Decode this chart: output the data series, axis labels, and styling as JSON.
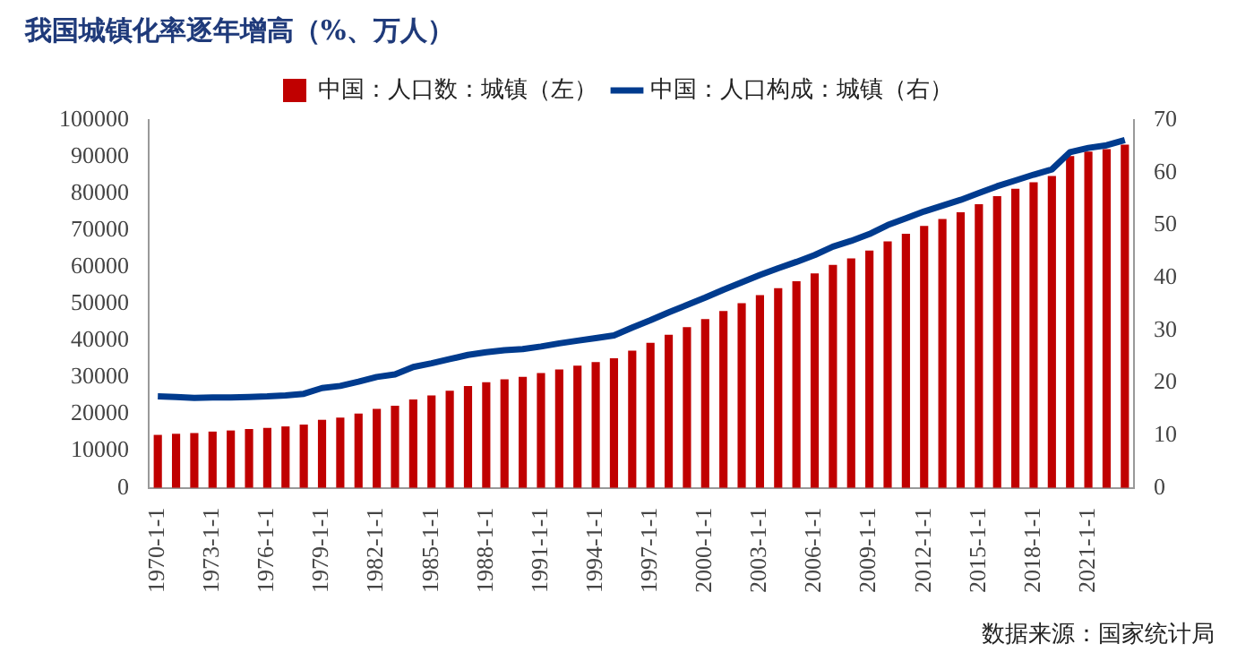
{
  "chart_data": {
    "type": "bar",
    "title": "我国城镇化率逐年增高（%、万人）",
    "categories": [
      "1970-1-1",
      null,
      null,
      "1973-1-1",
      null,
      null,
      "1976-1-1",
      null,
      null,
      "1979-1-1",
      null,
      null,
      "1982-1-1",
      null,
      null,
      "1985-1-1",
      null,
      null,
      "1988-1-1",
      null,
      null,
      "1991-1-1",
      null,
      null,
      "1994-1-1",
      null,
      null,
      "1997-1-1",
      null,
      null,
      "2000-1-1",
      null,
      null,
      "2003-1-1",
      null,
      null,
      "2006-1-1",
      null,
      null,
      "2009-1-1",
      null,
      null,
      "2012-1-1",
      null,
      null,
      "2015-1-1",
      null,
      null,
      "2018-1-1",
      null,
      null,
      "2021-1-1",
      null,
      null
    ],
    "series": [
      {
        "name": "中国：人口数：城镇（左）",
        "color": "#c00000",
        "values": [
          14400,
          14700,
          14900,
          15300,
          15600,
          16000,
          16300,
          16700,
          17200,
          18500,
          19100,
          20200,
          21500,
          22300,
          24000,
          25100,
          26400,
          27700,
          28700,
          29500,
          30200,
          31200,
          32200,
          33200,
          34200,
          35200,
          37300,
          39400,
          41600,
          43700,
          45900,
          48100,
          50200,
          52400,
          54300,
          56200,
          58300,
          60600,
          62400,
          64500,
          67000,
          69100,
          71200,
          73100,
          74900,
          77100,
          79300,
          81300,
          83100,
          84800,
          90200,
          91400,
          92100,
          93300
        ]
      },
      {
        "name": "中国：人口构成：城镇（右）",
        "type": "line",
        "axis": "y2",
        "color": "#003b8e",
        "values": [
          17.4,
          17.3,
          17.1,
          17.2,
          17.2,
          17.3,
          17.4,
          17.6,
          17.9,
          19,
          19.4,
          20.2,
          21.1,
          21.6,
          23,
          23.7,
          24.5,
          25.3,
          25.8,
          26.2,
          26.4,
          26.9,
          27.5,
          28,
          28.5,
          29,
          30.5,
          31.9,
          33.4,
          34.8,
          36.2,
          37.7,
          39.1,
          40.5,
          41.8,
          43,
          44.3,
          45.9,
          47,
          48.3,
          50,
          51.3,
          52.6,
          53.7,
          54.8,
          56.1,
          57.4,
          58.5,
          59.6,
          60.6,
          63.9,
          64.7,
          65.2,
          66.2
        ]
      }
    ],
    "ylim": [
      0,
      100000
    ],
    "yticks": [
      0,
      10000,
      20000,
      30000,
      40000,
      50000,
      60000,
      70000,
      80000,
      90000,
      100000
    ],
    "y2lim": [
      0,
      70
    ],
    "y2ticks": [
      0,
      10,
      20,
      30,
      40,
      50,
      60,
      70
    ],
    "grid": false,
    "legend": "top",
    "marker": "none",
    "line_style": "solid",
    "annotations": [
      "数据来源：国家统计局"
    ]
  }
}
